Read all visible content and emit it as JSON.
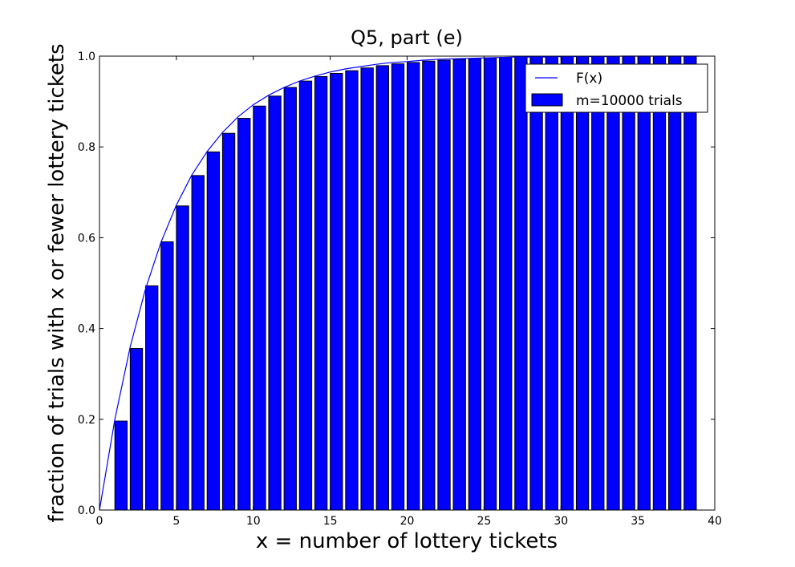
{
  "chart_data": {
    "type": "bar",
    "title": "Q5, part (e)",
    "xlabel": "x = number of lottery tickets",
    "ylabel": "fraction of trials with x or fewer lottery tickets",
    "xlim": [
      0,
      40
    ],
    "ylim": [
      0.0,
      1.0
    ],
    "xticks": [
      0,
      5,
      10,
      15,
      20,
      25,
      30,
      35,
      40
    ],
    "yticks": [
      "0.0",
      "0.2",
      "0.4",
      "0.6",
      "0.8",
      "1.0"
    ],
    "grid": false,
    "legend_position": "top-right",
    "bar_color": "#0000ff",
    "line_color": "#0000ff",
    "series": [
      {
        "name": "F(x)",
        "kind": "line",
        "x": [
          0,
          1,
          2,
          3,
          4,
          5,
          6,
          7,
          8,
          9,
          10,
          11,
          12,
          13,
          14,
          15,
          16,
          17,
          18,
          19,
          20,
          21,
          22,
          23,
          24,
          25,
          26,
          27,
          28,
          29,
          30,
          31,
          32,
          33,
          34,
          35,
          36,
          37,
          38,
          39
        ],
        "values": [
          0.0,
          0.2,
          0.36,
          0.488,
          0.59,
          0.672,
          0.738,
          0.79,
          0.832,
          0.866,
          0.893,
          0.914,
          0.931,
          0.945,
          0.956,
          0.965,
          0.972,
          0.977,
          0.982,
          0.986,
          0.988,
          0.991,
          0.993,
          0.994,
          0.995,
          0.996,
          0.997,
          0.998,
          0.998,
          0.998,
          0.999,
          0.999,
          0.999,
          0.999,
          1.0,
          1.0,
          1.0,
          1.0,
          1.0,
          1.0
        ]
      },
      {
        "name": "m=10000 trials",
        "kind": "bar",
        "x": [
          1,
          2,
          3,
          4,
          5,
          6,
          7,
          8,
          9,
          10,
          11,
          12,
          13,
          14,
          15,
          16,
          17,
          18,
          19,
          20,
          21,
          22,
          23,
          24,
          25,
          26,
          27,
          28,
          29,
          30,
          31,
          32,
          33,
          34,
          35,
          36,
          37,
          38
        ],
        "values": [
          0.196,
          0.356,
          0.494,
          0.591,
          0.67,
          0.737,
          0.789,
          0.83,
          0.863,
          0.89,
          0.912,
          0.931,
          0.945,
          0.955,
          0.962,
          0.968,
          0.974,
          0.979,
          0.983,
          0.986,
          0.989,
          0.991,
          0.993,
          0.995,
          0.996,
          0.997,
          0.998,
          0.999,
          0.999,
          0.999,
          1.0,
          1.0,
          1.0,
          1.0,
          1.0,
          1.0,
          1.0,
          1.0
        ]
      }
    ]
  }
}
